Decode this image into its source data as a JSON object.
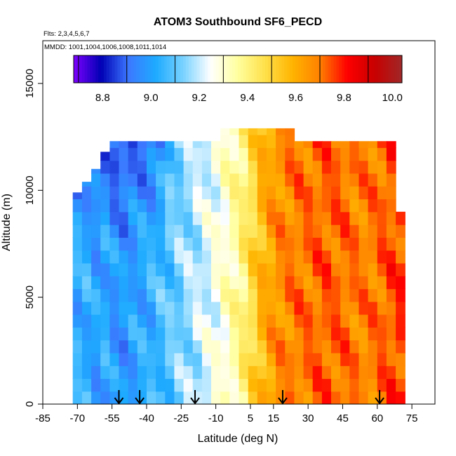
{
  "chart_data": {
    "type": "heatmap",
    "title": "ATOM3 Southbound SF6_PECD",
    "subtitle_flights": "Flts: 2,3,4,5,6,7",
    "subtitle_dates": "MMDD: 1001,1004,1006,1008,1011,1014",
    "xlabel": "Latitude (deg N)",
    "ylabel": "Altitude (m)",
    "xlim": [
      -85,
      85
    ],
    "ylim": [
      0,
      17000
    ],
    "x_ticks": [
      -85,
      -70,
      -55,
      -40,
      -25,
      -10,
      5,
      15,
      30,
      45,
      60,
      75
    ],
    "y_ticks": [
      0,
      5000,
      10000,
      15000
    ],
    "colorbar": {
      "ticks": [
        8.8,
        9.0,
        9.2,
        9.4,
        9.6,
        9.8,
        10.0
      ],
      "range": [
        8.68,
        10.04
      ],
      "colors": [
        "#7f00ff",
        "#0000b4",
        "#3c78ff",
        "#1eaaff",
        "#78d2ff",
        "#ffffff",
        "#ffff9e",
        "#ffe04a",
        "#ffb400",
        "#ff8000",
        "#ff0000",
        "#c80000",
        "#a02828"
      ],
      "placement": "top"
    },
    "data_columns": [
      {
        "lat": -70,
        "top": 9900,
        "value": 9.03
      },
      {
        "lat": -66,
        "top": 10400,
        "value": 9.03
      },
      {
        "lat": -62,
        "top": 11000,
        "value": 9.0
      },
      {
        "lat": -58,
        "top": 11800,
        "value": 9.02
      },
      {
        "lat": -54,
        "top": 12300,
        "value": 8.98
      },
      {
        "lat": -50,
        "top": 12300,
        "value": 8.98
      },
      {
        "lat": -46,
        "top": 12300,
        "value": 9.0
      },
      {
        "lat": -42,
        "top": 12300,
        "value": 9.02
      },
      {
        "lat": -38,
        "top": 12300,
        "value": 9.04
      },
      {
        "lat": -34,
        "top": 12300,
        "value": 9.07
      },
      {
        "lat": -30,
        "top": 12300,
        "value": 9.1
      },
      {
        "lat": -26,
        "top": 12300,
        "value": 9.13
      },
      {
        "lat": -22,
        "top": 12300,
        "value": 9.16
      },
      {
        "lat": -18,
        "top": 12300,
        "value": 9.19
      },
      {
        "lat": -14,
        "top": 12300,
        "value": 9.22
      },
      {
        "lat": -10,
        "top": 12300,
        "value": 9.26
      },
      {
        "lat": -6,
        "top": 12900,
        "value": 9.3
      },
      {
        "lat": -2,
        "top": 12900,
        "value": 9.35
      },
      {
        "lat": 2,
        "top": 12900,
        "value": 9.41
      },
      {
        "lat": 6,
        "top": 12900,
        "value": 9.49
      },
      {
        "lat": 10,
        "top": 12900,
        "value": 9.58
      },
      {
        "lat": 14,
        "top": 12900,
        "value": 9.63
      },
      {
        "lat": 18,
        "top": 12900,
        "value": 9.67
      },
      {
        "lat": 22,
        "top": 12900,
        "value": 9.69
      },
      {
        "lat": 26,
        "top": 12300,
        "value": 9.7
      },
      {
        "lat": 30,
        "top": 12300,
        "value": 9.71
      },
      {
        "lat": 34,
        "top": 12300,
        "value": 9.72
      },
      {
        "lat": 38,
        "top": 12300,
        "value": 9.73
      },
      {
        "lat": 42,
        "top": 12300,
        "value": 9.72
      },
      {
        "lat": 46,
        "top": 12300,
        "value": 9.71
      },
      {
        "lat": 50,
        "top": 12300,
        "value": 9.7
      },
      {
        "lat": 54,
        "top": 12300,
        "value": 9.69
      },
      {
        "lat": 58,
        "top": 12300,
        "value": 9.7
      },
      {
        "lat": 62,
        "top": 12300,
        "value": 9.72
      },
      {
        "lat": 66,
        "top": 12300,
        "value": 9.74
      },
      {
        "lat": 70,
        "top": 9000,
        "value": 9.76
      }
    ],
    "flight_arrows_lat": [
      -52,
      -43,
      -19,
      19,
      61
    ]
  }
}
